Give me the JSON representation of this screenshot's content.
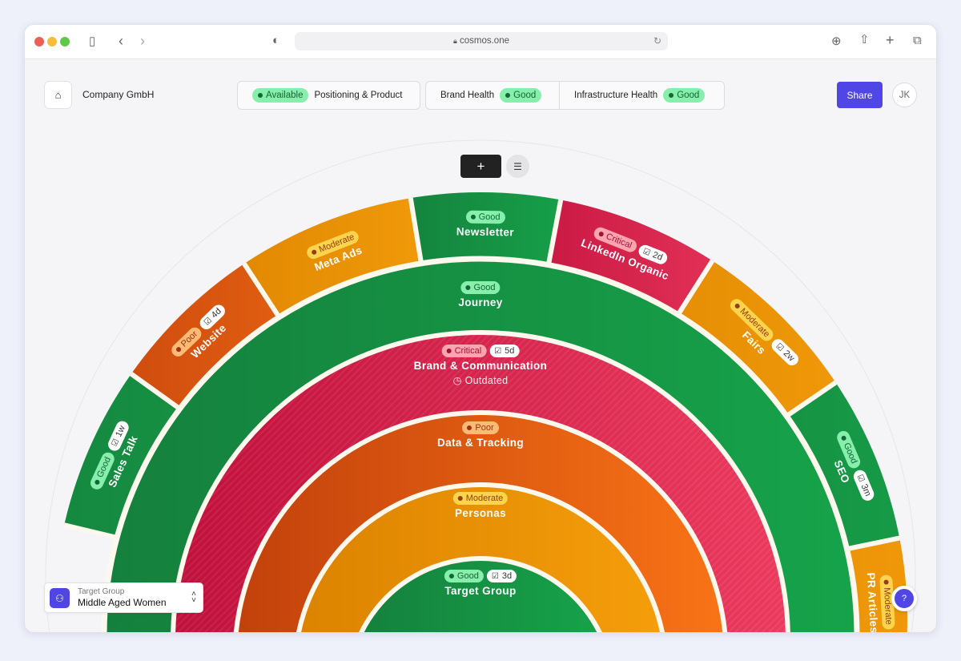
{
  "browser": {
    "url": "cosmos.one"
  },
  "header": {
    "company": "Company GmbH",
    "tabs": [
      {
        "badge": "Available",
        "label": "Positioning & Product"
      },
      {
        "label": "Brand Health",
        "badge": "Good"
      },
      {
        "label": "Infrastructure Health",
        "badge": "Good"
      }
    ],
    "share": "Share",
    "avatar": "JK"
  },
  "toolbar": {
    "add": "+",
    "filter_icon": "sliders-icon"
  },
  "rings": [
    {
      "name": "Target Group",
      "status": "Good",
      "count": "3d"
    },
    {
      "name": "Personas",
      "status": "Moderate"
    },
    {
      "name": "Data & Tracking",
      "status": "Poor"
    },
    {
      "name": "Brand & Communication",
      "status": "Critical",
      "count": "5d",
      "note": "Outdated"
    },
    {
      "name": "Journey",
      "status": "Good"
    }
  ],
  "outer": [
    {
      "name": "Sales Talk",
      "status": "Good",
      "count": "1w"
    },
    {
      "name": "Website",
      "status": "Poor",
      "count": "4d"
    },
    {
      "name": "Meta Ads",
      "status": "Moderate"
    },
    {
      "name": "Newsletter",
      "status": "Good"
    },
    {
      "name": "LinkedIn Organic",
      "status": "Critical",
      "count": "2d"
    },
    {
      "name": "Fairs",
      "status": "Moderate",
      "count": "2w"
    },
    {
      "name": "SEO",
      "status": "Good",
      "count": "3m"
    },
    {
      "name": "PR Articles",
      "status": "Moderate"
    }
  ],
  "target_selector": {
    "label": "Target Group",
    "value": "Middle Aged Women"
  },
  "status_colors": {
    "Good": {
      "fill_dark": "#15803d",
      "fill_light": "#16a34a",
      "badge_bg": "#86efac",
      "badge_fg": "#166534"
    },
    "Moderate": {
      "fill_dark": "#dc8300",
      "fill_light": "#f59e0b",
      "badge_bg": "#fcd34d",
      "badge_fg": "#92400e"
    },
    "Poor": {
      "fill_dark": "#c2410c",
      "fill_light": "#f97316",
      "badge_bg": "#fdba74",
      "badge_fg": "#9a3412"
    },
    "Critical": {
      "fill_dark": "#c0103c",
      "fill_light": "#ec3a5e",
      "badge_bg": "#fda4af",
      "badge_fg": "#9f1239"
    }
  },
  "accent": "#4f46e5"
}
